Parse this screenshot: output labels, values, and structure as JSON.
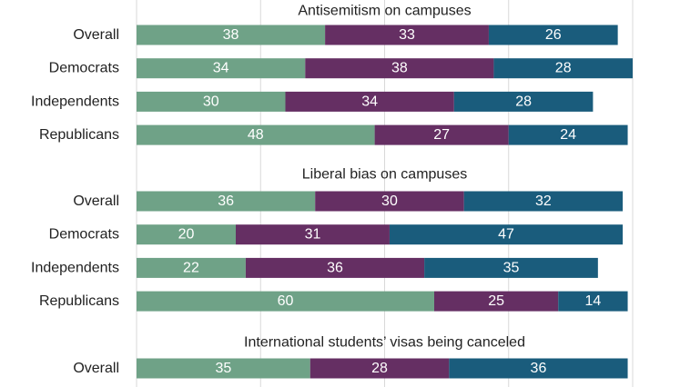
{
  "chart_data": {
    "type": "bar",
    "orientation": "horizontal",
    "stacked": true,
    "xlim": [
      0,
      100
    ],
    "grid": true,
    "colors": [
      "#6fa287",
      "#652f63",
      "#1a5c7c"
    ],
    "groups": [
      {
        "title": "Antisemitism on campuses",
        "categories": [
          "Overall",
          "Democrats",
          "Independents",
          "Republicans"
        ],
        "series": [
          {
            "values": [
              38,
              34,
              30,
              48
            ]
          },
          {
            "values": [
              33,
              38,
              34,
              27
            ]
          },
          {
            "values": [
              26,
              28,
              28,
              24
            ]
          }
        ]
      },
      {
        "title": "Liberal bias on campuses",
        "categories": [
          "Overall",
          "Democrats",
          "Independents",
          "Republicans"
        ],
        "series": [
          {
            "values": [
              36,
              20,
              22,
              60
            ]
          },
          {
            "values": [
              30,
              31,
              36,
              25
            ]
          },
          {
            "values": [
              32,
              47,
              35,
              14
            ]
          }
        ]
      },
      {
        "title": "International students’ visas being canceled",
        "categories": [
          "Overall"
        ],
        "series": [
          {
            "values": [
              35
            ]
          },
          {
            "values": [
              28
            ]
          },
          {
            "values": [
              36
            ]
          }
        ]
      }
    ]
  }
}
